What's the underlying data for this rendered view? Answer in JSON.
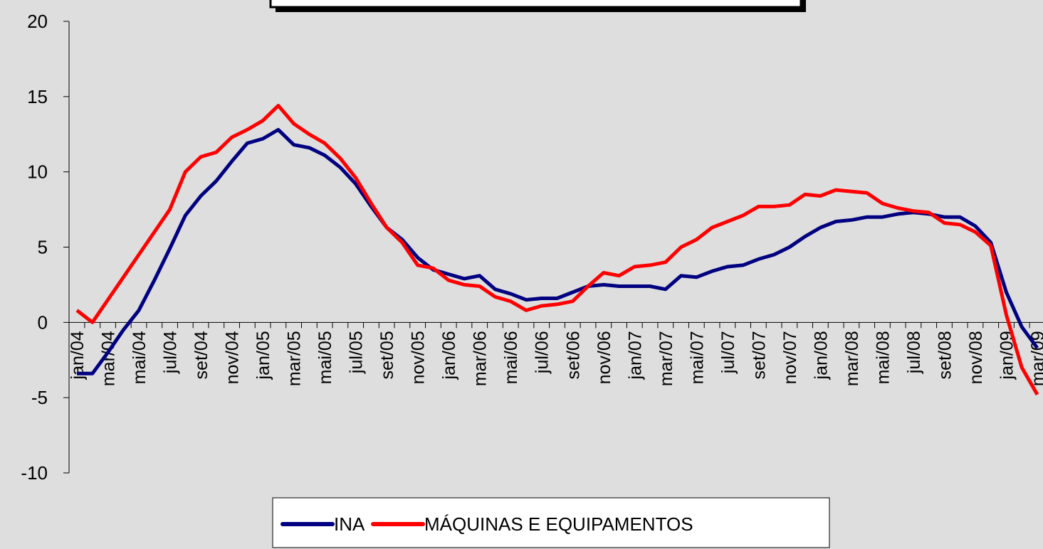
{
  "chart_data": {
    "type": "line",
    "categories": [
      "jan/04",
      null,
      "mar/04",
      null,
      "mai/04",
      null,
      "jul/04",
      null,
      "set/04",
      null,
      "nov/04",
      null,
      "jan/05",
      null,
      "mar/05",
      null,
      "mai/05",
      null,
      "jul/05",
      null,
      "set/05",
      null,
      "nov/05",
      null,
      "jan/06",
      null,
      "mar/06",
      null,
      "mai/06",
      null,
      "jul/06",
      null,
      "set/06",
      null,
      "nov/06",
      null,
      "jan/07",
      null,
      "mar/07",
      null,
      "mai/07",
      null,
      "jul/07",
      null,
      "set/07",
      null,
      "nov/07",
      null,
      "jan/08",
      null,
      "mar/08",
      null,
      "mai/08",
      null,
      "jul/08",
      null,
      "set/08",
      null,
      "nov/08",
      null,
      "jan/09",
      null,
      "mar/09"
    ],
    "series": [
      {
        "name": "INA",
        "color": "#000080",
        "values": [
          -3.4,
          -3.4,
          -2.0,
          -0.5,
          0.8,
          2.8,
          4.9,
          7.1,
          8.4,
          9.4,
          10.7,
          11.9,
          12.2,
          12.8,
          11.8,
          11.6,
          11.1,
          10.3,
          9.2,
          7.7,
          6.3,
          5.5,
          4.3,
          3.5,
          3.2,
          2.9,
          3.1,
          2.2,
          1.9,
          1.5,
          1.6,
          1.6,
          2.0,
          2.4,
          2.5,
          2.4,
          2.4,
          2.4,
          2.2,
          3.1,
          3.0,
          3.4,
          3.7,
          3.8,
          4.2,
          4.5,
          5.0,
          5.7,
          6.3,
          6.7,
          6.8,
          7.0,
          7.0,
          7.2,
          7.3,
          7.2,
          7.0,
          7.0,
          6.4,
          5.3,
          2.0,
          -0.3,
          -1.7
        ]
      },
      {
        "name": "MÁQUINAS E EQUIPAMENTOS",
        "color": "#ff0000",
        "values": [
          0.8,
          0.0,
          1.5,
          3.0,
          4.5,
          6.0,
          7.5,
          10.0,
          11.0,
          11.3,
          12.3,
          12.8,
          13.4,
          14.4,
          13.2,
          12.5,
          11.9,
          10.9,
          9.6,
          7.9,
          6.3,
          5.3,
          3.8,
          3.6,
          2.8,
          2.5,
          2.4,
          1.7,
          1.4,
          0.8,
          1.1,
          1.2,
          1.4,
          2.4,
          3.3,
          3.1,
          3.7,
          3.8,
          4.0,
          5.0,
          5.5,
          6.3,
          6.7,
          7.1,
          7.7,
          7.7,
          7.8,
          8.5,
          8.4,
          8.8,
          8.7,
          8.6,
          7.9,
          7.6,
          7.4,
          7.3,
          6.6,
          6.5,
          6.0,
          5.1,
          0.5,
          -3.0,
          -4.8
        ]
      }
    ],
    "ylim": [
      -10,
      20
    ],
    "yticks": [
      -10,
      -5,
      0,
      5,
      10,
      15,
      20
    ]
  }
}
